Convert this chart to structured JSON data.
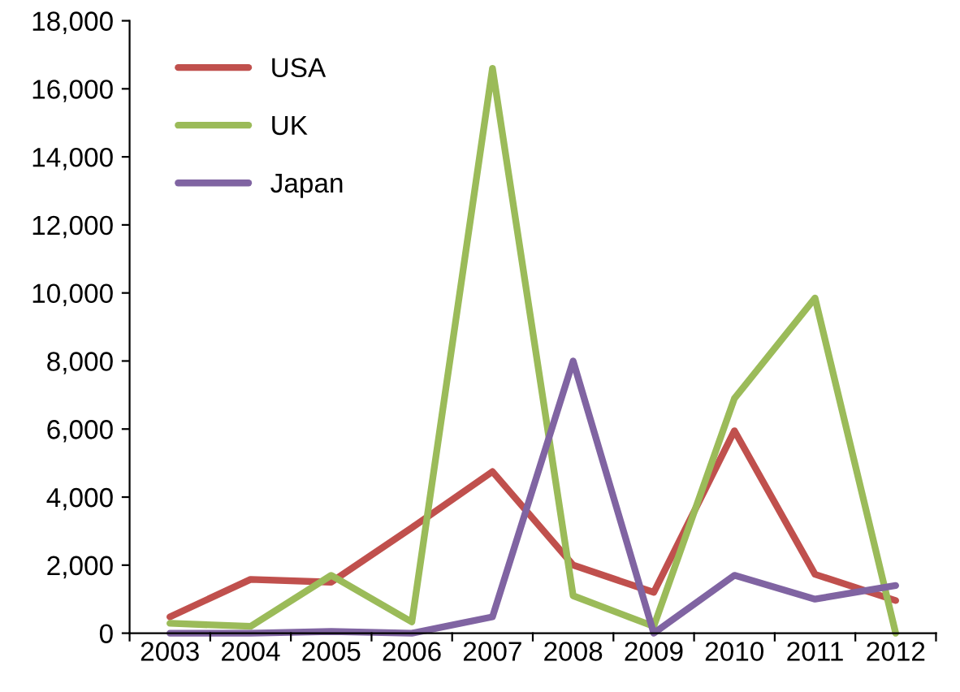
{
  "chart_data": {
    "type": "line",
    "categories": [
      "2003",
      "2004",
      "2005",
      "2006",
      "2007",
      "2008",
      "2009",
      "2010",
      "2011",
      "2012"
    ],
    "series": [
      {
        "name": "USA",
        "color": "#c0504d",
        "values": [
          480,
          1580,
          1500,
          3100,
          4750,
          2000,
          1200,
          5950,
          1730,
          960
        ]
      },
      {
        "name": "UK",
        "color": "#9bbb59",
        "values": [
          290,
          200,
          1700,
          330,
          16600,
          1100,
          200,
          6900,
          9850,
          0
        ]
      },
      {
        "name": "Japan",
        "color": "#8064a2",
        "values": [
          0,
          0,
          50,
          0,
          480,
          8000,
          0,
          1700,
          1000,
          1400
        ]
      }
    ],
    "ylim": [
      0,
      18000
    ],
    "yticks": [
      {
        "value": 0,
        "label": "0"
      },
      {
        "value": 2000,
        "label": "2,000"
      },
      {
        "value": 4000,
        "label": "4,000"
      },
      {
        "value": 6000,
        "label": "6,000"
      },
      {
        "value": 8000,
        "label": "8,000"
      },
      {
        "value": 10000,
        "label": "10,000"
      },
      {
        "value": 12000,
        "label": "12,000"
      },
      {
        "value": 14000,
        "label": "14,000"
      },
      {
        "value": 16000,
        "label": "16,000"
      },
      {
        "value": 18000,
        "label": "18,000"
      }
    ],
    "grid": false,
    "legend": "top left",
    "marker": "none",
    "line_style": "solid"
  }
}
